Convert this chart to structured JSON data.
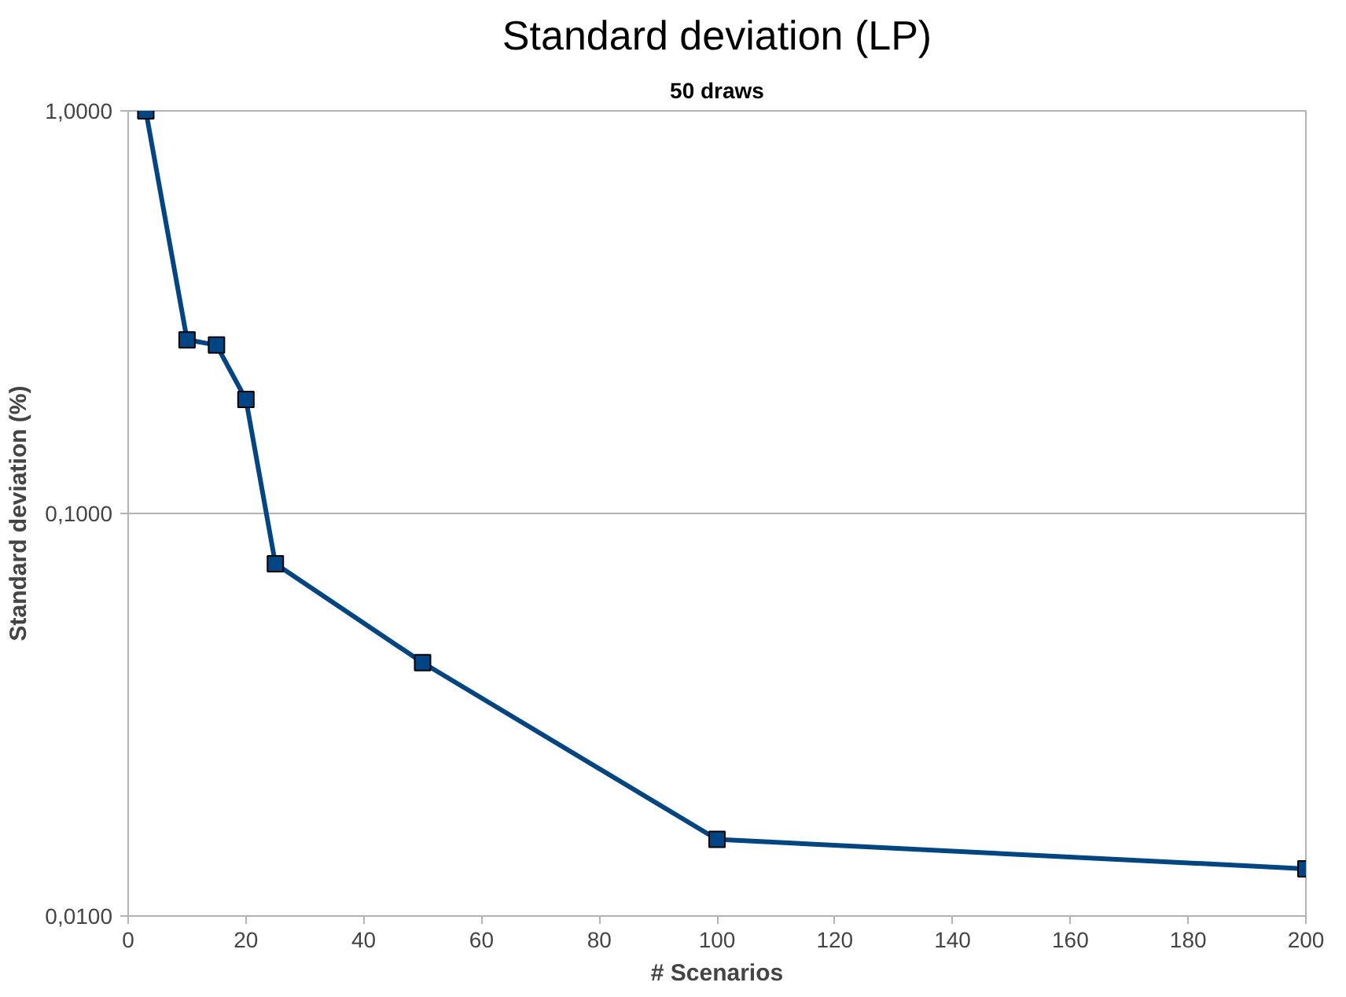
{
  "chart_data": {
    "type": "line",
    "title": "Standard deviation (LP)",
    "subtitle": "50 draws",
    "xlabel": "# Scenarios",
    "ylabel": "Standard deviation (%)",
    "x": [
      3,
      10,
      15,
      20,
      25,
      50,
      100,
      200
    ],
    "series": [
      {
        "color": "#004586",
        "values": [
          1.0,
          0.27,
          0.262,
          0.192,
          0.075,
          0.0426,
          0.0155,
          0.0131
        ]
      }
    ],
    "log": "y",
    "xlim": [
      0,
      200
    ],
    "xticks": [
      0,
      20,
      40,
      60,
      80,
      100,
      120,
      140,
      160,
      180,
      200
    ],
    "ylim": [
      0.01,
      1
    ],
    "yticks": [
      {
        "value": 0.01,
        "label": "0,0100"
      },
      {
        "value": 0.1,
        "label": "0,1000"
      },
      {
        "value": 1,
        "label": "1,0000"
      }
    ],
    "grid": "y",
    "marker": "square",
    "line_style": "solid"
  }
}
